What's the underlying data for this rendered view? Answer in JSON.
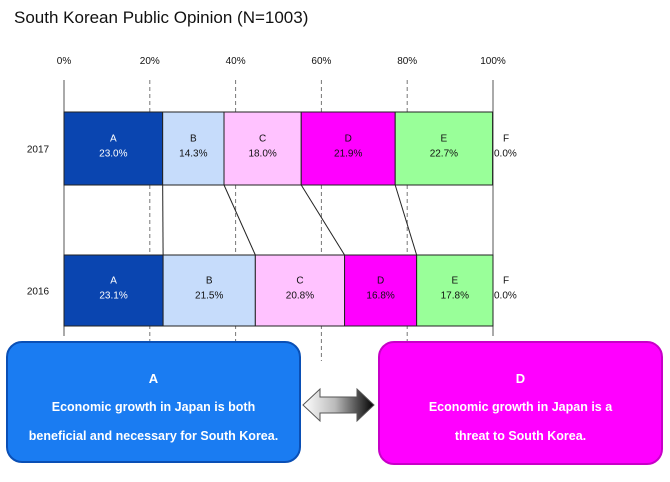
{
  "chart_data": {
    "type": "stacked-bar-horizontal",
    "title": "South Korean Public Opinion (N=1003)",
    "xlim": [
      0,
      100
    ],
    "x_ticks": [
      "0%",
      "20%",
      "40%",
      "60%",
      "80%",
      "100%"
    ],
    "categories": [
      "2017",
      "2016"
    ],
    "series": [
      {
        "name": "A",
        "values": [
          23.0,
          23.1
        ],
        "labels": [
          "23.0%",
          "23.1%"
        ],
        "color": "#0a45b0"
      },
      {
        "name": "B",
        "values": [
          14.3,
          21.5
        ],
        "labels": [
          "14.3%",
          "21.5%"
        ],
        "color": "#c6dcfb"
      },
      {
        "name": "C",
        "values": [
          18.0,
          20.8
        ],
        "labels": [
          "18.0%",
          "20.8%"
        ],
        "color": "#ffc2ff"
      },
      {
        "name": "D",
        "values": [
          21.9,
          16.8
        ],
        "labels": [
          "21.9%",
          "16.8%"
        ],
        "color": "#ff00ff"
      },
      {
        "name": "E",
        "values": [
          22.7,
          17.8
        ],
        "labels": [
          "22.7%",
          "17.8%"
        ],
        "color": "#99ff99"
      },
      {
        "name": "F",
        "values": [
          0.0,
          0.0
        ],
        "labels": [
          "0.0%",
          "0.0%"
        ],
        "color": "#ffffff"
      }
    ],
    "grid": "dashed vertical at 20% intervals"
  },
  "callouts": {
    "a": {
      "head": "A",
      "line1": "Economic growth in Japan is both",
      "line2": "beneficial and necessary for South Korea."
    },
    "d": {
      "head": "D",
      "line1": "Economic growth in Japan is a",
      "line2": "threat to South Korea."
    }
  },
  "colors": {
    "arrow_dark": "#111111",
    "arrow_light": "#ffffff"
  }
}
